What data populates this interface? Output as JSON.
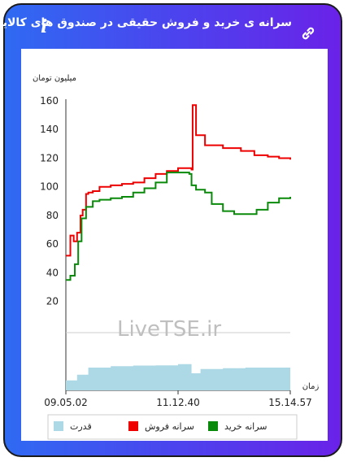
{
  "header": {
    "title": "سرانه ی خرید و فروش حقیقی در صندوق های کالایی",
    "info_icon": "i",
    "link_icon": "link-icon"
  },
  "chart_data": {
    "type": "line",
    "ylabel": "میلیون تومان",
    "xlabel": "زمان",
    "yticks": [
      20,
      40,
      60,
      80,
      100,
      120,
      140,
      160
    ],
    "ylim": [
      0,
      160
    ],
    "xticks": [
      "09.05.02",
      "11.12.40",
      "15.14.57"
    ],
    "watermark": "LiveTSE.ir",
    "colors": {
      "sell": "#ee0000",
      "buy": "#0a8a0a",
      "power": "#add8e6"
    },
    "legend": [
      {
        "name": "قدرت",
        "color": "#add8e6"
      },
      {
        "name": "سرانه فروش",
        "color": "#ee0000"
      },
      {
        "name": "سرانه خرید",
        "color": "#0a8a0a"
      }
    ],
    "series": [
      {
        "name": "سرانه فروش",
        "x": [
          0,
          0.02,
          0.035,
          0.05,
          0.065,
          0.075,
          0.09,
          0.1,
          0.12,
          0.15,
          0.2,
          0.25,
          0.3,
          0.35,
          0.4,
          0.45,
          0.5,
          0.55,
          0.56,
          0.565,
          0.58,
          0.62,
          0.7,
          0.78,
          0.84,
          0.9,
          0.95,
          1.0
        ],
        "values": [
          52,
          66,
          62,
          68,
          80,
          84,
          95,
          96,
          97,
          100,
          101,
          102,
          103,
          106,
          109,
          111,
          113,
          113,
          112,
          157,
          136,
          129,
          127,
          125,
          122,
          121,
          120,
          119
        ]
      },
      {
        "name": "سرانه خرید",
        "x": [
          0,
          0.02,
          0.04,
          0.055,
          0.07,
          0.09,
          0.12,
          0.15,
          0.2,
          0.25,
          0.3,
          0.35,
          0.4,
          0.45,
          0.5,
          0.55,
          0.56,
          0.58,
          0.62,
          0.65,
          0.7,
          0.75,
          0.8,
          0.85,
          0.9,
          0.95,
          1.0
        ],
        "values": [
          35,
          38,
          46,
          62,
          78,
          86,
          90,
          91,
          92,
          93,
          96,
          99,
          103,
          110,
          110,
          109,
          101,
          98,
          96,
          88,
          83,
          81,
          81,
          84,
          89,
          92,
          93
        ]
      }
    ],
    "power": {
      "x": [
        0,
        0.05,
        0.1,
        0.2,
        0.3,
        0.4,
        0.5,
        0.55,
        0.56,
        0.6,
        0.7,
        0.8,
        0.9,
        1.0
      ],
      "values": [
        0.35,
        0.55,
        0.8,
        0.85,
        0.87,
        0.88,
        0.92,
        0.92,
        0.6,
        0.75,
        0.78,
        0.8,
        0.8,
        0.82
      ]
    }
  }
}
